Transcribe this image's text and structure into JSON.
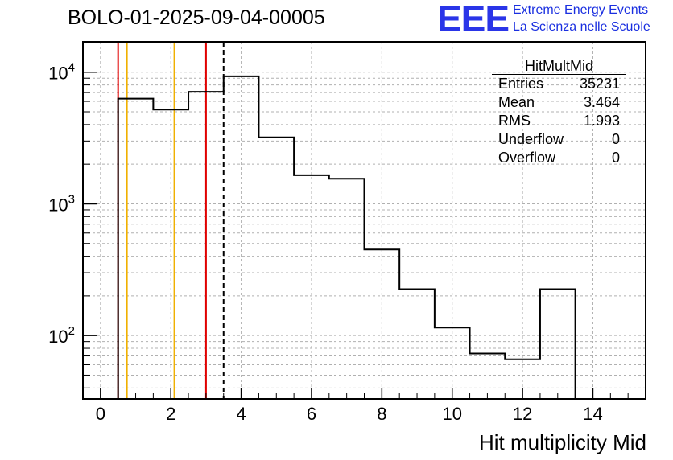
{
  "chart_data": {
    "type": "histogram",
    "title": "BOLO-01-2025-09-04-00005",
    "xlabel": "Hit multiplicity Mid",
    "ylabel": "",
    "xlim": [
      -0.5,
      15.5
    ],
    "ylim": [
      33,
      17000
    ],
    "yscale": "log",
    "grid": true,
    "x_ticks": [
      0,
      2,
      4,
      6,
      8,
      10,
      12,
      14
    ],
    "y_ticks": [
      {
        "value": 100,
        "base": "10",
        "exp": "2"
      },
      {
        "value": 1000,
        "base": "10",
        "exp": "3"
      },
      {
        "value": 10000,
        "base": "10",
        "exp": "4"
      }
    ],
    "bin_edges": [
      0.5,
      1.5,
      2.5,
      3.5,
      4.5,
      5.5,
      6.5,
      7.5,
      8.5,
      9.5,
      10.5,
      11.5,
      12.5,
      13.5
    ],
    "values": [
      6300,
      5200,
      7100,
      9300,
      3200,
      1650,
      1550,
      450,
      225,
      115,
      73,
      66,
      225
    ],
    "vlines": [
      {
        "x": 0.5,
        "color": "#e00000",
        "style": "solid"
      },
      {
        "x": 0.75,
        "color": "#f0b000",
        "style": "solid"
      },
      {
        "x": 2.1,
        "color": "#f0b000",
        "style": "solid"
      },
      {
        "x": 3.0,
        "color": "#e00000",
        "style": "solid"
      },
      {
        "x": 3.5,
        "color": "#000000",
        "style": "dashed"
      }
    ]
  },
  "stats": {
    "name": "HitMultMid",
    "rows": [
      {
        "label": "Entries",
        "value": "35231"
      },
      {
        "label": "Mean",
        "value": "3.464"
      },
      {
        "label": "RMS",
        "value": "1.993"
      },
      {
        "label": "Underflow",
        "value": "0"
      },
      {
        "label": "Overflow",
        "value": "0"
      }
    ]
  },
  "logo": {
    "mark": "EEE",
    "line1": "Extreme Energy Events",
    "line2": "La Scienza nelle Scuole",
    "color": "#2a35e8"
  }
}
